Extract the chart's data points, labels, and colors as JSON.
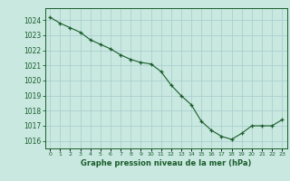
{
  "x": [
    0,
    1,
    2,
    3,
    4,
    5,
    6,
    7,
    8,
    9,
    10,
    11,
    12,
    13,
    14,
    15,
    16,
    17,
    18,
    19,
    20,
    21,
    22,
    23
  ],
  "y": [
    1024.2,
    1023.8,
    1023.5,
    1023.2,
    1022.7,
    1022.4,
    1022.1,
    1021.7,
    1021.4,
    1021.2,
    1021.1,
    1020.6,
    1019.7,
    1019.0,
    1018.4,
    1017.3,
    1016.7,
    1016.3,
    1016.1,
    1016.5,
    1017.0,
    1017.0,
    1017.0,
    1017.4
  ],
  "line_color": "#1a5c2a",
  "marker": "+",
  "bg_color": "#c8e8e0",
  "grid_color": "#a8cccc",
  "xlabel": "Graphe pression niveau de la mer (hPa)",
  "xlabel_color": "#1a5c2a",
  "tick_color": "#1a5c2a",
  "ylim_min": 1015.5,
  "ylim_max": 1024.8,
  "xtick_labels": [
    "0",
    "1",
    "2",
    "3",
    "4",
    "5",
    "6",
    "7",
    "8",
    "9",
    "10",
    "11",
    "12",
    "13",
    "14",
    "15",
    "16",
    "17",
    "18",
    "19",
    "20",
    "21",
    "22",
    "23"
  ],
  "spine_color": "#1a5c2a",
  "fig_bg": "#c8e8e0"
}
